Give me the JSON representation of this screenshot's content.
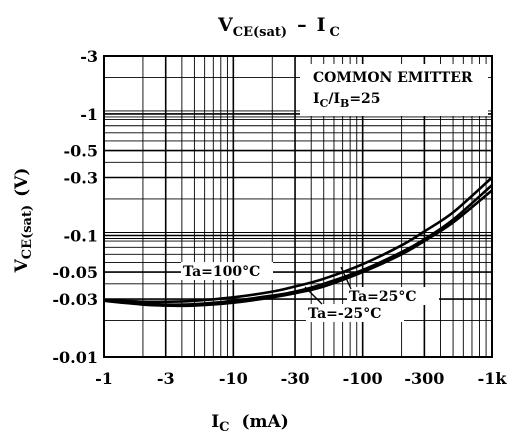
{
  "chart_data": {
    "type": "line",
    "title": "V_CE(sat) – I_C",
    "title_parts": {
      "main": "V",
      "main_sub": "CE(sat)",
      "dash": "–",
      "second": "I",
      "second_sub": "C"
    },
    "xlabel": "IC (mA)",
    "xlabel_parts": {
      "main": "I",
      "sub": "C",
      "unit": "(mA)"
    },
    "ylabel": "VCE(sat) (V)",
    "ylabel_parts": {
      "main": "V",
      "sub": "CE(sat)",
      "unit": "(V)"
    },
    "x_scale": "log",
    "y_scale": "log",
    "xlim": [
      -1,
      -1000
    ],
    "ylim": [
      -0.01,
      -3
    ],
    "x_tick_labels": [
      "-1",
      "-3",
      "-10",
      "-30",
      "-100",
      "-300",
      "-1k"
    ],
    "x_tick_values": [
      -1,
      -3,
      -10,
      -30,
      -100,
      -300,
      -1000
    ],
    "y_tick_labels": [
      "-3",
      "-1",
      "-0.5",
      "-0.3",
      "-0.1",
      "-0.05",
      "-0.03",
      "-0.01"
    ],
    "y_tick_values": [
      -3,
      -1,
      -0.5,
      -0.3,
      -0.1,
      -0.05,
      -0.03,
      -0.01
    ],
    "grid": true,
    "annotation_box": {
      "line1": "COMMON EMITTER",
      "line2_main": "I",
      "line2_sub1": "C",
      "line2_mid": "/I",
      "line2_sub2": "B",
      "line2_end": "=25"
    },
    "series": [
      {
        "name": "Ta=100°C",
        "x": [
          -1,
          -2,
          -3,
          -5,
          -10,
          -20,
          -30,
          -50,
          -100,
          -200,
          -300,
          -500,
          -1000
        ],
        "y": [
          -0.0295,
          -0.0285,
          -0.0285,
          -0.029,
          -0.031,
          -0.0345,
          -0.038,
          -0.044,
          -0.058,
          -0.083,
          -0.108,
          -0.155,
          -0.3
        ]
      },
      {
        "name": "Ta=25°C",
        "x": [
          -1,
          -2,
          -3,
          -5,
          -10,
          -20,
          -30,
          -50,
          -100,
          -200,
          -300,
          -500,
          -1000
        ],
        "y": [
          -0.0295,
          -0.0275,
          -0.027,
          -0.0272,
          -0.029,
          -0.032,
          -0.0345,
          -0.04,
          -0.052,
          -0.073,
          -0.093,
          -0.135,
          -0.26
        ]
      },
      {
        "name": "Ta=-25°C",
        "x": [
          -1,
          -2,
          -3,
          -5,
          -10,
          -20,
          -30,
          -50,
          -100,
          -200,
          -300,
          -500,
          -1000
        ],
        "y": [
          -0.029,
          -0.027,
          -0.0265,
          -0.0265,
          -0.028,
          -0.031,
          -0.0335,
          -0.038,
          -0.05,
          -0.07,
          -0.09,
          -0.128,
          -0.235
        ]
      }
    ],
    "series_labels": [
      {
        "main": "Ta=100",
        "deg": "°C"
      },
      {
        "main": "Ta=25",
        "deg": "°C"
      },
      {
        "main": "Ta=-25",
        "deg": "°C"
      }
    ]
  }
}
